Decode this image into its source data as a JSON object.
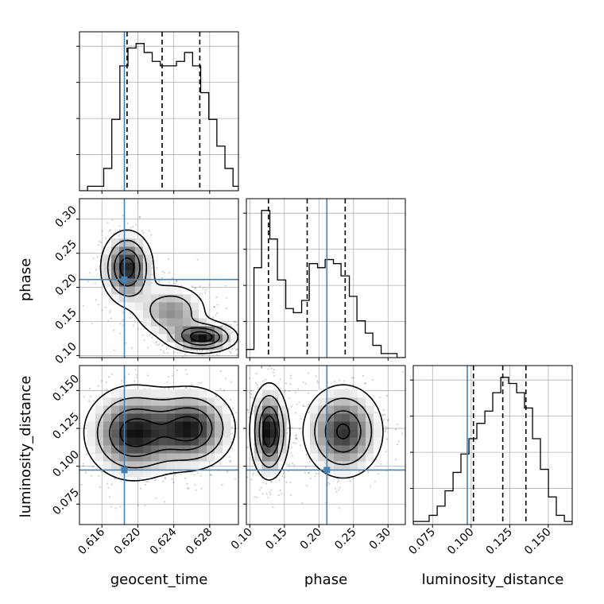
{
  "chart_data": [
    {
      "type": "histogram",
      "panel": "geocent_time",
      "xlim": [
        0.6135,
        0.6312
      ],
      "xticks": [
        0.616,
        0.62,
        0.624,
        0.628
      ],
      "bins": [
        0.6135,
        0.6144,
        0.6153,
        0.6162,
        0.6171,
        0.618,
        0.6189,
        0.6198,
        0.6207,
        0.6216,
        0.6225,
        0.6234,
        0.6243,
        0.6252,
        0.6261,
        0.627,
        0.6279,
        0.6288,
        0.6297,
        0.6306,
        0.6312
      ],
      "counts": [
        0,
        1,
        1,
        5,
        16,
        28,
        32,
        33,
        31,
        29,
        28,
        28,
        29,
        31,
        28,
        22,
        16,
        10,
        5,
        1
      ],
      "quantiles": [
        0.6188,
        0.6227,
        0.6269
      ],
      "truth": 0.6185,
      "grid": true
    },
    {
      "type": "histogram",
      "panel": "phase",
      "xlim": [
        0.095,
        0.325
      ],
      "xticks": [
        0.1,
        0.15,
        0.2,
        0.25,
        0.3
      ],
      "bins": [
        0.095,
        0.106,
        0.117,
        0.129,
        0.14,
        0.152,
        0.163,
        0.175,
        0.186,
        0.198,
        0.209,
        0.221,
        0.232,
        0.244,
        0.255,
        0.267,
        0.278,
        0.29,
        0.301,
        0.313,
        0.325
      ],
      "counts": [
        2,
        22,
        36,
        29,
        19,
        12,
        11,
        14,
        23,
        22,
        24,
        23,
        20,
        15,
        9,
        6,
        3,
        1,
        1,
        0
      ],
      "quantiles": [
        0.127,
        0.183,
        0.238
      ],
      "truth": 0.2115,
      "grid": true
    },
    {
      "type": "histogram",
      "panel": "luminosity_distance",
      "xlim": [
        0.0625,
        0.1655
      ],
      "xticks": [
        0.075,
        0.1,
        0.125,
        0.15
      ],
      "bins": [
        0.0625,
        0.0677,
        0.0728,
        0.078,
        0.0831,
        0.0883,
        0.0934,
        0.0986,
        0.1037,
        0.1089,
        0.114,
        0.1192,
        0.1243,
        0.1295,
        0.1346,
        0.1398,
        0.1449,
        0.1501,
        0.1552,
        0.1604,
        0.1655
      ],
      "counts": [
        1,
        1,
        3,
        6,
        11,
        17,
        23,
        28,
        33,
        37,
        43,
        48,
        46,
        43,
        38,
        28,
        18,
        9,
        3,
        1
      ],
      "quantiles": [
        0.1015,
        0.1205,
        0.1355
      ],
      "truth": 0.0975,
      "grid": true
    },
    {
      "type": "contour-scatter",
      "panel": "phase vs geocent_time",
      "xlim": [
        0.6135,
        0.6312
      ],
      "ylim": [
        0.097,
        0.33
      ],
      "xticks": [
        0.616,
        0.62,
        0.624,
        0.628
      ],
      "yticks": [
        0.1,
        0.15,
        0.2,
        0.25,
        0.3
      ],
      "blobs": [
        [
          0.6188,
          0.229,
          0.0015,
          0.028,
          1.0
        ],
        [
          0.6272,
          0.127,
          0.002,
          0.012,
          1.0
        ],
        [
          0.6237,
          0.165,
          0.0022,
          0.022,
          0.6
        ]
      ],
      "truth": [
        0.6185,
        0.2115
      ],
      "grid": true
    },
    {
      "type": "contour-scatter",
      "panel": "luminosity_distance vs geocent_time",
      "xlim": [
        0.6135,
        0.6312
      ],
      "ylim": [
        0.0615,
        0.1665
      ],
      "xticks": [
        0.616,
        0.62,
        0.624,
        0.628
      ],
      "yticks": [
        0.075,
        0.1,
        0.125,
        0.15
      ],
      "blobs": [
        [
          0.6195,
          0.122,
          0.0028,
          0.016,
          1.0
        ],
        [
          0.626,
          0.125,
          0.0025,
          0.014,
          0.95
        ]
      ],
      "truth": [
        0.6185,
        0.0975
      ],
      "grid": true
    },
    {
      "type": "contour-scatter",
      "panel": "luminosity_distance vs phase",
      "xlim": [
        0.095,
        0.325
      ],
      "ylim": [
        0.0615,
        0.1665
      ],
      "xticks": [
        0.1,
        0.15,
        0.2,
        0.25,
        0.3
      ],
      "yticks": [
        0.075,
        0.1,
        0.125,
        0.15
      ],
      "blobs": [
        [
          0.128,
          0.123,
          0.014,
          0.016,
          1.0
        ],
        [
          0.235,
          0.123,
          0.03,
          0.016,
          0.85
        ]
      ],
      "truth": [
        0.2115,
        0.0975
      ],
      "grid": true
    }
  ],
  "labels": {
    "x": [
      "geocent_time",
      "phase",
      "luminosity_distance"
    ],
    "y": [
      "phase",
      "luminosity_distance"
    ]
  },
  "colors": {
    "truth": "#4682b4",
    "line": "#000000",
    "grid": "#b0b0b0"
  }
}
